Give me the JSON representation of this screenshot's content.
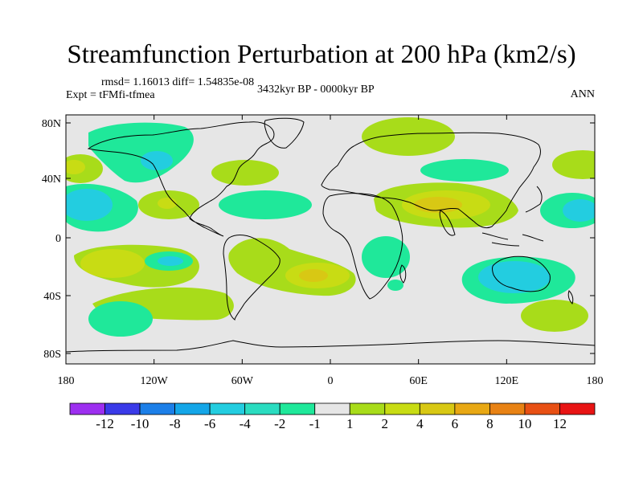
{
  "title": "Streamfunction Perturbation at 200 hPa (km2/s)",
  "stats": "rmsd= 1.16013 diff= 1.54835e-08",
  "expt": "Expt = tFMfi-tfmea",
  "period": "3432kyr BP - 0000kyr BP",
  "season": "ANN",
  "lat_labels": [
    "80N",
    "40N",
    "0",
    "40S",
    "80S"
  ],
  "lon_labels": [
    "180",
    "120W",
    "60W",
    "0",
    "60E",
    "120E",
    "180"
  ],
  "colorbar": {
    "colors": [
      "#9d2ff0",
      "#3a3ae8",
      "#1c7fe8",
      "#14a6e8",
      "#23cde0",
      "#2adcc0",
      "#1fe89a",
      "#e6e6e6",
      "#a8dc1a",
      "#c8dc14",
      "#d8c814",
      "#e8a814",
      "#e88214",
      "#e85014",
      "#e81414"
    ],
    "labels": [
      "-12",
      "-10",
      "-8",
      "-6",
      "-4",
      "-2",
      "-1",
      "1",
      "2",
      "4",
      "6",
      "8",
      "10",
      "12"
    ]
  }
}
